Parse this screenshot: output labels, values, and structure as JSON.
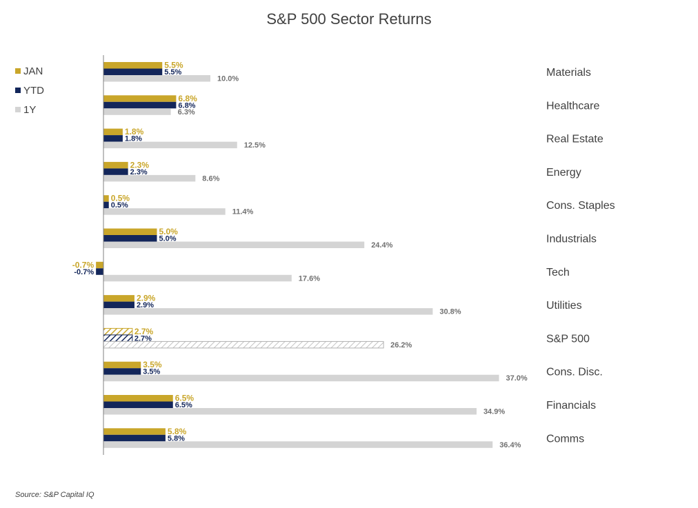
{
  "title": "S&P 500 Sector Returns",
  "source": "Source: S&P Capital IQ",
  "colors": {
    "JAN": "#c9a62a",
    "YTD": "#13265a",
    "1Y": "#d4d4d4",
    "axis": "#808080",
    "text": "#404040"
  },
  "legend": [
    {
      "name": "JAN",
      "label": "JAN"
    },
    {
      "name": "YTD",
      "label": "YTD"
    },
    {
      "name": "1Y",
      "label": "1Y"
    }
  ],
  "chart_data": {
    "type": "bar",
    "orientation": "horizontal",
    "title": "S&P 500 Sector Returns",
    "categories": [
      "Materials",
      "Healthcare",
      "Real Estate",
      "Energy",
      "Cons. Staples",
      "Industrials",
      "Tech",
      "Utilities",
      "S&P 500",
      "Cons. Disc.",
      "Financials",
      "Comms"
    ],
    "series": [
      {
        "name": "JAN",
        "values": [
          5.5,
          6.8,
          1.8,
          2.3,
          0.5,
          5.0,
          -0.7,
          2.9,
          2.7,
          3.5,
          6.5,
          5.8
        ],
        "labels": [
          "5.5%",
          "6.8%",
          "1.8%",
          "2.3%",
          "0.5%",
          "5.0%",
          "-0.7%",
          "2.9%",
          "2.7%",
          "3.5%",
          "6.5%",
          "5.8%"
        ]
      },
      {
        "name": "YTD",
        "values": [
          5.5,
          6.8,
          1.8,
          2.3,
          0.5,
          5.0,
          -0.7,
          2.9,
          2.7,
          3.5,
          6.5,
          5.8
        ],
        "labels": [
          "5.5%",
          "6.8%",
          "1.8%",
          "2.3%",
          "0.5%",
          "5.0%",
          "-0.7%",
          "2.9%",
          "2.7%",
          "3.5%",
          "6.5%",
          "5.8%"
        ]
      },
      {
        "name": "1Y",
        "values": [
          10.0,
          6.3,
          12.5,
          8.6,
          11.4,
          24.4,
          17.6,
          30.8,
          26.2,
          37.0,
          34.9,
          36.4
        ],
        "labels": [
          "10.0%",
          "6.3%",
          "12.5%",
          "8.6%",
          "11.4%",
          "24.4%",
          "17.6%",
          "30.8%",
          "26.2%",
          "37.0%",
          "34.9%",
          "36.4%"
        ]
      }
    ],
    "highlight_category": "S&P 500",
    "legend_position": "top-left",
    "grid": false
  }
}
